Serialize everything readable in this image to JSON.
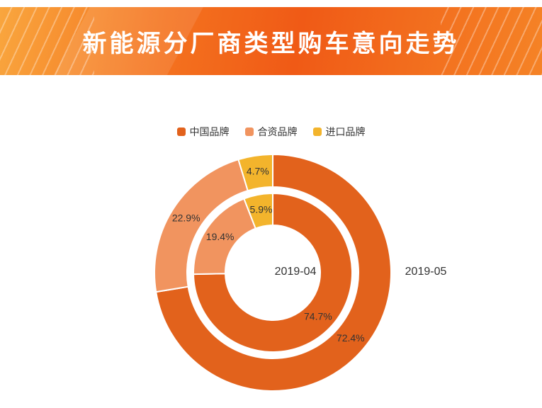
{
  "banner": {
    "title": "新能源分厂商类型购车意向走势"
  },
  "legend": {
    "items": [
      {
        "label": "中国品牌",
        "color": "#e2621c"
      },
      {
        "label": "合资品牌",
        "color": "#f1945f"
      },
      {
        "label": "进口品牌",
        "color": "#f3b42c"
      }
    ]
  },
  "chart_data": {
    "type": "pie",
    "subtype": "nested-donut",
    "title": "新能源分厂商类型购车意向走势",
    "categories": [
      "中国品牌",
      "合资品牌",
      "进口品牌"
    ],
    "colors": [
      "#e2621c",
      "#f1945f",
      "#f3b42c"
    ],
    "unit": "%",
    "legend_position": "top",
    "direction": "clockwise",
    "start_angle_deg": 0,
    "center": [
      385,
      385
    ],
    "border_color": "#ffffff",
    "label_color": "#333333",
    "series": [
      {
        "name": "2019-04",
        "ring": "inner",
        "radius": [
          67,
          112
        ],
        "values": [
          74.7,
          19.4,
          5.9
        ],
        "name_label": {
          "text": "2019-04",
          "pos": [
            417,
            384
          ]
        }
      },
      {
        "name": "2019-05",
        "ring": "outer",
        "radius": [
          121,
          167
        ],
        "values": [
          72.4,
          22.9,
          4.7
        ],
        "name_label": {
          "text": "2019-05",
          "pos": [
            601,
            384
          ]
        }
      }
    ]
  }
}
